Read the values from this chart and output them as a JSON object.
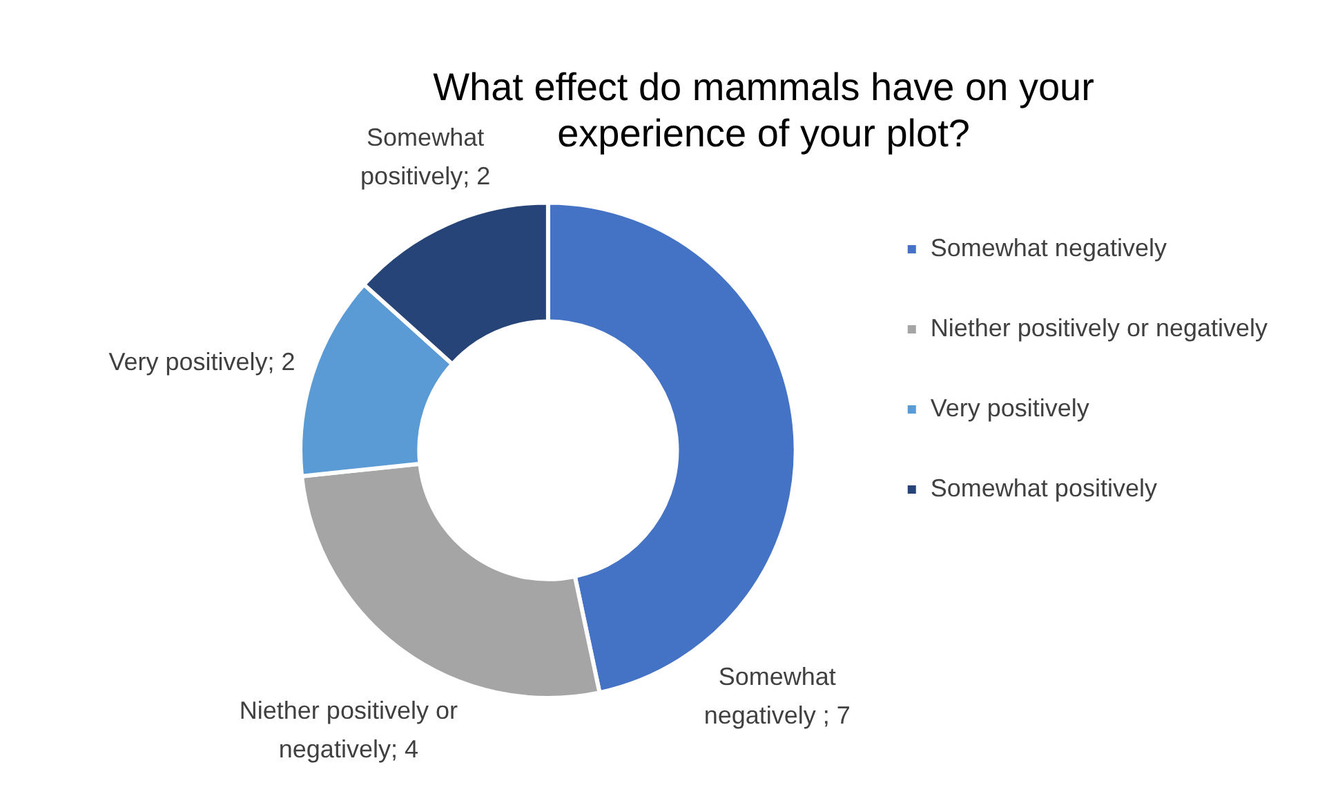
{
  "chart_data": {
    "type": "donut",
    "title": "What effect do mammals have on your experience of your plot?",
    "categories": [
      "Somewhat negatively",
      "Niether positively or negatively",
      "Very positively",
      "Somewhat positively"
    ],
    "values": [
      7,
      4,
      2,
      2
    ],
    "colors": [
      "#4472c4",
      "#a5a5a5",
      "#5b9bd5",
      "#264478"
    ],
    "value_labels": [
      "Somewhat negatively ; 7",
      "Niether positively or negatively; 4",
      "Very positively; 2",
      "Somewhat positively; 2"
    ],
    "legend": "right"
  }
}
